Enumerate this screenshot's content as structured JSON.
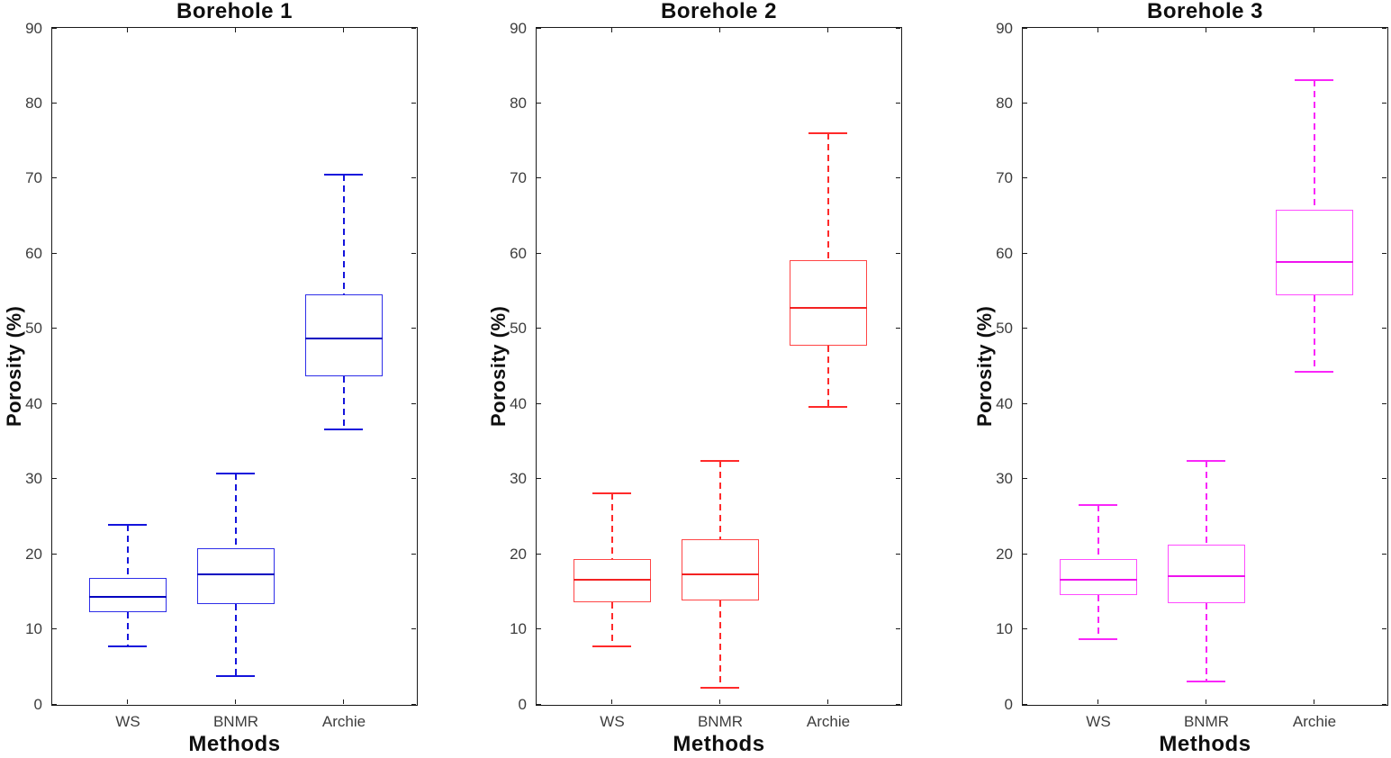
{
  "figure": {
    "background": "#ffffff",
    "axis_color": "#1a1a1a",
    "tick_label_color": "#3d3d3d",
    "title_color": "#0f0f0f",
    "ylabel": "Porosity (%)",
    "xlabel": "Methods",
    "categories": [
      "WS",
      "BNMR",
      "Archie"
    ],
    "yticks": [
      0,
      10,
      20,
      30,
      40,
      50,
      60,
      70,
      80,
      90
    ],
    "ylim": [
      0,
      90
    ]
  },
  "chart_data": [
    {
      "type": "boxplot",
      "title": "Borehole 1",
      "xlabel": "Methods",
      "ylabel": "Porosity (%)",
      "ylim": [
        0,
        90
      ],
      "grid": false,
      "categories": [
        "WS",
        "BNMR",
        "Archie"
      ],
      "color": "#2e2ee8",
      "median_color": "#0000c0",
      "whisker_color": "#1414dc",
      "boxes": [
        {
          "category": "WS",
          "whisker_low": 7.7,
          "q1": 12.2,
          "median": 14.3,
          "q3": 16.8,
          "whisker_high": 23.8
        },
        {
          "category": "BNMR",
          "whisker_low": 3.7,
          "q1": 13.3,
          "median": 17.3,
          "q3": 20.7,
          "whisker_high": 30.7
        },
        {
          "category": "Archie",
          "whisker_low": 36.6,
          "q1": 43.6,
          "median": 48.7,
          "q3": 54.5,
          "whisker_high": 70.5
        }
      ]
    },
    {
      "type": "boxplot",
      "title": "Borehole 2",
      "xlabel": "Methods",
      "ylabel": "Porosity (%)",
      "ylim": [
        0,
        90
      ],
      "grid": false,
      "categories": [
        "WS",
        "BNMR",
        "Archie"
      ],
      "color": "#ff4545",
      "median_color": "#f32222",
      "whisker_color": "#ff2a2a",
      "boxes": [
        {
          "category": "WS",
          "whisker_low": 7.7,
          "q1": 13.5,
          "median": 16.5,
          "q3": 19.3,
          "whisker_high": 28.0
        },
        {
          "category": "BNMR",
          "whisker_low": 2.1,
          "q1": 13.8,
          "median": 17.2,
          "q3": 21.9,
          "whisker_high": 32.4
        },
        {
          "category": "Archie",
          "whisker_low": 39.5,
          "q1": 47.7,
          "median": 52.7,
          "q3": 59.1,
          "whisker_high": 76.0
        }
      ]
    },
    {
      "type": "boxplot",
      "title": "Borehole 3",
      "xlabel": "Methods",
      "ylabel": "Porosity (%)",
      "ylim": [
        0,
        90
      ],
      "grid": false,
      "categories": [
        "WS",
        "BNMR",
        "Archie"
      ],
      "color": "#ff4cff",
      "median_color": "#ee14ee",
      "whisker_color": "#f926f9",
      "boxes": [
        {
          "category": "WS",
          "whisker_low": 8.6,
          "q1": 14.5,
          "median": 16.5,
          "q3": 19.3,
          "whisker_high": 26.5
        },
        {
          "category": "BNMR",
          "whisker_low": 3.0,
          "q1": 13.4,
          "median": 17.0,
          "q3": 21.2,
          "whisker_high": 32.4
        },
        {
          "category": "Archie",
          "whisker_low": 44.2,
          "q1": 54.4,
          "median": 58.8,
          "q3": 65.8,
          "whisker_high": 83.0
        }
      ]
    }
  ]
}
